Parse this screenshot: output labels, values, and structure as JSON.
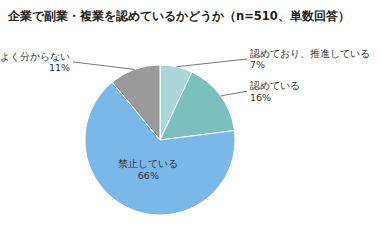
{
  "chart_data": {
    "type": "pie",
    "title": "企業で副業・複業を認めているかどうか（n=510、単数回答）",
    "categories": [
      "認めており、推進している",
      "認めている",
      "禁止している",
      "よく分からない"
    ],
    "values": [
      7,
      16,
      66,
      11
    ],
    "value_labels": [
      "7%",
      "16%",
      "66%",
      "11%"
    ],
    "colors": [
      "#a8d8d8",
      "#7cbfbf",
      "#79b8e8",
      "#9a9a9a"
    ],
    "data_labels": true
  }
}
